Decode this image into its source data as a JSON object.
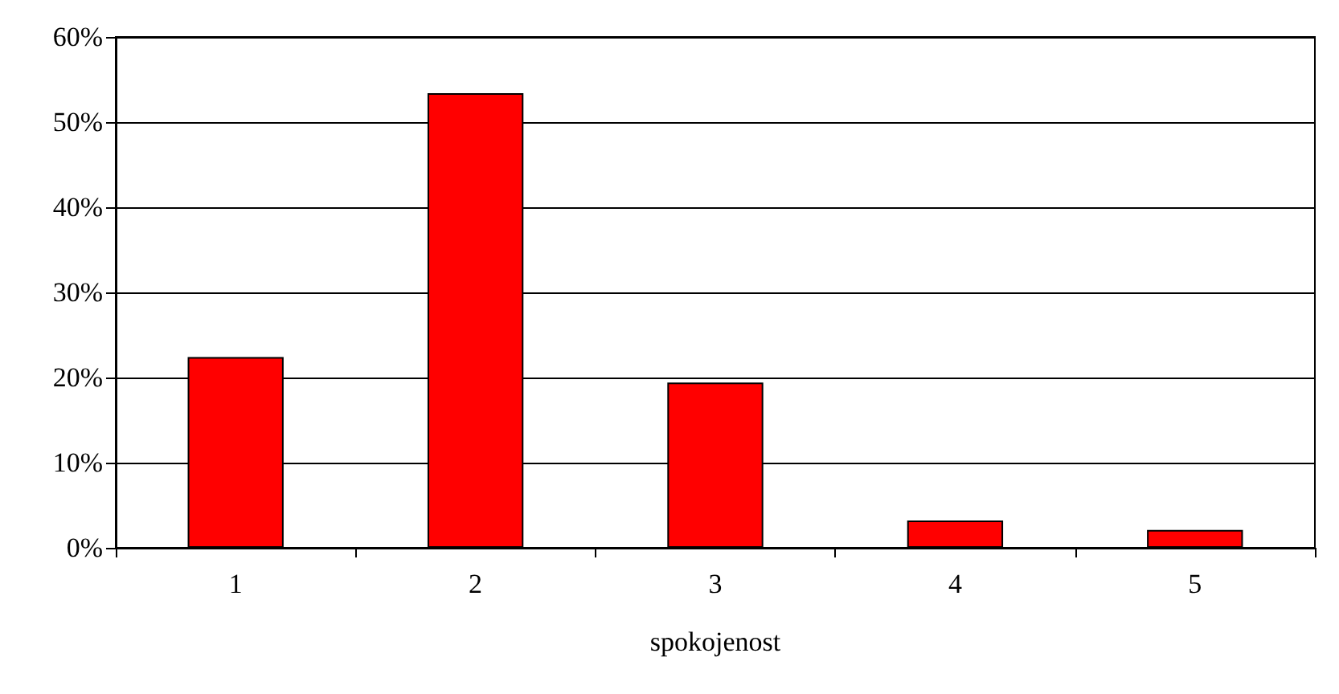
{
  "chart_data": {
    "type": "bar",
    "xlabel": "spokojenost",
    "categories": [
      "1",
      "2",
      "3",
      "4",
      "5"
    ],
    "values": [
      22.4,
      53.4,
      19.4,
      3.2,
      2.1
    ],
    "color": "#ff0000",
    "ylim": [
      0,
      60
    ],
    "yticks": [
      {
        "value": 0,
        "label": "0%"
      },
      {
        "value": 10,
        "label": "10%"
      },
      {
        "value": 20,
        "label": "20%"
      },
      {
        "value": 30,
        "label": "30%"
      },
      {
        "value": 40,
        "label": "40%"
      },
      {
        "value": 50,
        "label": "50%"
      },
      {
        "value": 60,
        "label": "60%"
      }
    ],
    "grid": "y"
  }
}
